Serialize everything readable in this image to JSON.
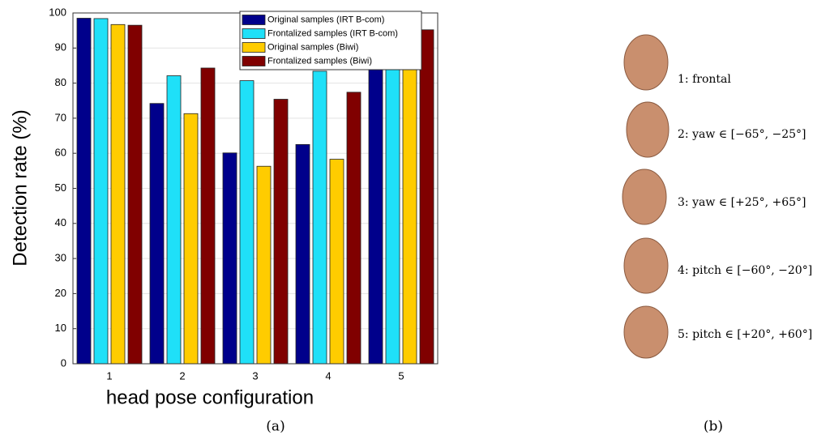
{
  "chart_data": {
    "type": "bar",
    "xlabel": "head pose configuration",
    "ylabel": "Detection rate (%)",
    "categories": [
      "1",
      "2",
      "3",
      "4",
      "5"
    ],
    "series": [
      {
        "name": "Original samples (IRT B-com)",
        "color": "#00008b",
        "values": [
          98.5,
          74.2,
          60.1,
          62.5,
          94.3
        ]
      },
      {
        "name": "Frontalized samples (IRT B-com)",
        "color": "#1fe0f8",
        "values": [
          98.4,
          82.1,
          80.7,
          83.4,
          94.5
        ]
      },
      {
        "name": "Original samples (Biwi)",
        "color": "#ffcc00",
        "values": [
          96.7,
          71.3,
          56.3,
          58.3,
          90.3
        ]
      },
      {
        "name": "Frontalized samples (Biwi)",
        "color": "#800000",
        "values": [
          96.5,
          84.3,
          75.4,
          77.4,
          95.2
        ]
      }
    ],
    "ylim": [
      0,
      100
    ],
    "yticks": [
      0,
      10,
      20,
      30,
      40,
      50,
      60,
      70,
      80,
      90,
      100
    ],
    "grid": true,
    "legend": "top"
  },
  "captions": {
    "a": "(a)",
    "b": "(b)"
  },
  "pose_labels": [
    "1: frontal",
    "2: yaw ∈ [−65°, −25°]",
    "3: yaw ∈ [+25°, +65°]",
    "4: pitch ∈ [−60°, −20°]",
    "5: pitch ∈ [+20°, +60°]"
  ]
}
